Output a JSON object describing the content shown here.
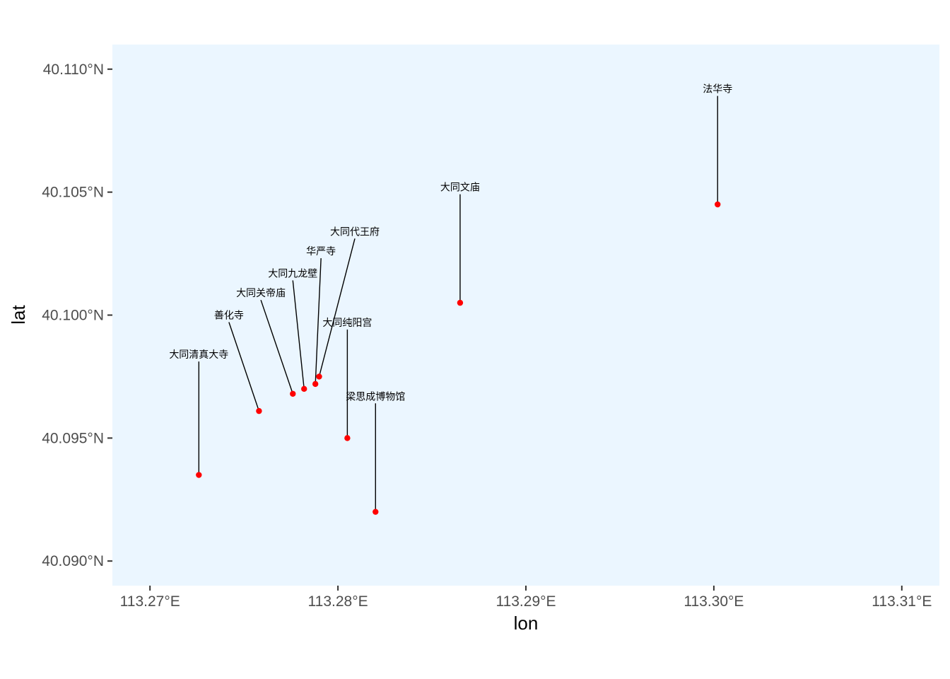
{
  "chart_data": {
    "type": "scatter",
    "xlabel": "lon",
    "ylabel": "lat",
    "xlim": [
      113.268,
      113.312
    ],
    "ylim": [
      40.089,
      40.111
    ],
    "x_ticks": [
      {
        "value": 113.27,
        "label": "113.27°E"
      },
      {
        "value": 113.28,
        "label": "113.28°E"
      },
      {
        "value": 113.29,
        "label": "113.29°E"
      },
      {
        "value": 113.3,
        "label": "113.30°E"
      },
      {
        "value": 113.31,
        "label": "113.31°E"
      }
    ],
    "y_ticks": [
      {
        "value": 40.09,
        "label": "40.090°N"
      },
      {
        "value": 40.095,
        "label": "40.095°N"
      },
      {
        "value": 40.1,
        "label": "40.100°N"
      },
      {
        "value": 40.105,
        "label": "40.105°N"
      },
      {
        "value": 40.11,
        "label": "40.110°N"
      }
    ],
    "panel_color": "#ebf6ff",
    "point_color": "#ff0000",
    "grid": false,
    "points": [
      {
        "label": "大同清真大寺",
        "lon": 113.2726,
        "lat": 40.0935,
        "label_lon": 113.2726,
        "label_lat": 40.0984
      },
      {
        "label": "善化寺",
        "lon": 113.2758,
        "lat": 40.0961,
        "label_lon": 113.2742,
        "label_lat": 40.1
      },
      {
        "label": "大同关帝庙",
        "lon": 113.2776,
        "lat": 40.0968,
        "label_lon": 113.2759,
        "label_lat": 40.1009
      },
      {
        "label": "大同九龙壁",
        "lon": 113.2782,
        "lat": 40.097,
        "label_lon": 113.2776,
        "label_lat": 40.1017
      },
      {
        "label": "华严寺",
        "lon": 113.2788,
        "lat": 40.0972,
        "label_lon": 113.2791,
        "label_lat": 40.1026
      },
      {
        "label": "大同代王府",
        "lon": 113.279,
        "lat": 40.0975,
        "label_lon": 113.2809,
        "label_lat": 40.1034
      },
      {
        "label": "大同纯阳宫",
        "lon": 113.2805,
        "lat": 40.095,
        "label_lon": 113.2805,
        "label_lat": 40.0997
      },
      {
        "label": "梁思成博物馆",
        "lon": 113.282,
        "lat": 40.092,
        "label_lon": 113.282,
        "label_lat": 40.0967
      },
      {
        "label": "大同文庙",
        "lon": 113.2865,
        "lat": 40.1005,
        "label_lon": 113.2865,
        "label_lat": 40.1052
      },
      {
        "label": "法华寺",
        "lon": 113.3002,
        "lat": 40.1045,
        "label_lon": 113.3002,
        "label_lat": 40.1092
      }
    ]
  }
}
